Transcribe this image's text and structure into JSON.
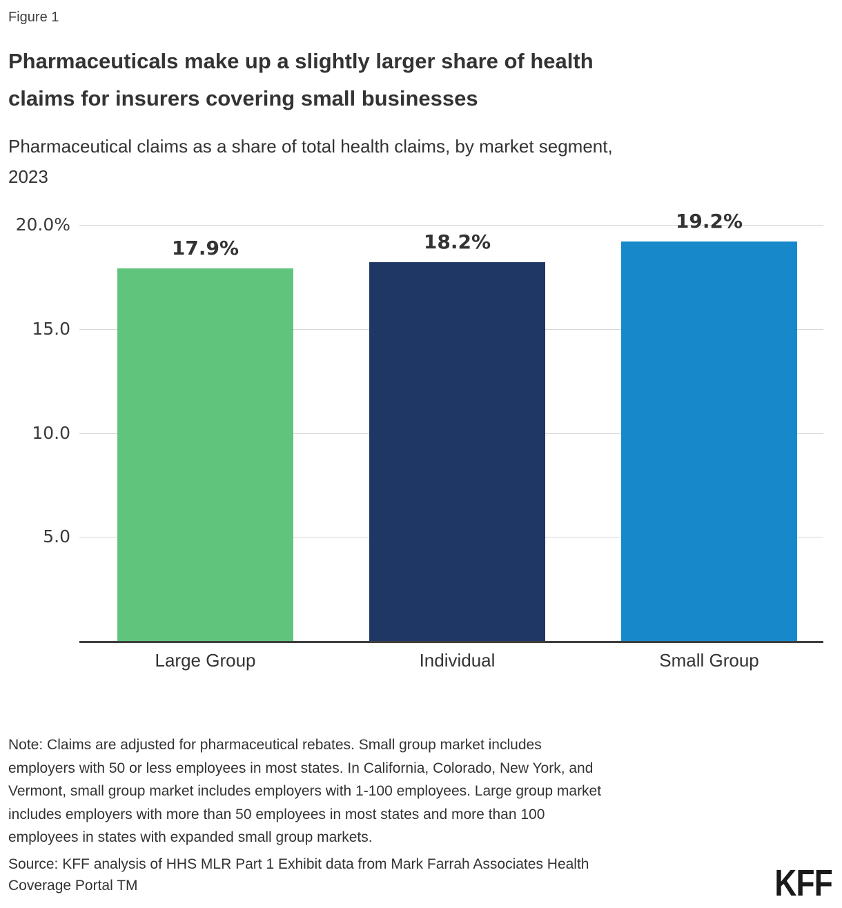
{
  "figure_label": "Figure 1",
  "header": {
    "title_lines": [
      "Pharmaceuticals make up a slightly larger share of health",
      "claims for insurers covering small businesses"
    ],
    "subtitle_lines": [
      "Pharmaceutical claims as a share of total health claims, by market segment,",
      "2023"
    ]
  },
  "chart_data": {
    "type": "bar",
    "title": "Pharmaceutical claims as a share of total health claims, by market segment, 2023",
    "categories": [
      "Large Group",
      "Individual",
      "Small Group"
    ],
    "values": [
      17.9,
      18.2,
      19.2
    ],
    "value_labels": [
      "17.9%",
      "18.2%",
      "19.2%"
    ],
    "bar_colors": [
      "#61C47D",
      "#1F3765",
      "#1789CB"
    ],
    "xlabel": "",
    "ylabel": "",
    "ylim": [
      0,
      20
    ],
    "yticks": [
      {
        "value": 20,
        "label": "20.0%"
      },
      {
        "value": 15,
        "label": "15.0"
      },
      {
        "value": 10,
        "label": "10.0"
      },
      {
        "value": 5,
        "label": "5.0"
      }
    ],
    "grid": "horizontal",
    "legend_position": "none"
  },
  "footer": {
    "note_lines": [
      "Note: Claims are adjusted for pharmaceutical rebates. Small group market includes",
      "employers with 50 or less employees in most states. In California, Colorado, New York, and",
      "Vermont, small group market includes employers with 1-100 employees. Large group market",
      "includes employers with more than 50 employees in most states and more than 100",
      "employees in states with expanded small group markets."
    ],
    "source_lines": [
      "Source: KFF analysis of HHS MLR Part 1 Exhibit data from Mark Farrah Associates Health",
      "Coverage Portal TM"
    ],
    "logo_text": "KFF"
  },
  "colors": {
    "text": "#333333",
    "gridline": "#D8D8D8",
    "axis_line": "#3F3F3F",
    "logo": "#1A1A1A"
  }
}
